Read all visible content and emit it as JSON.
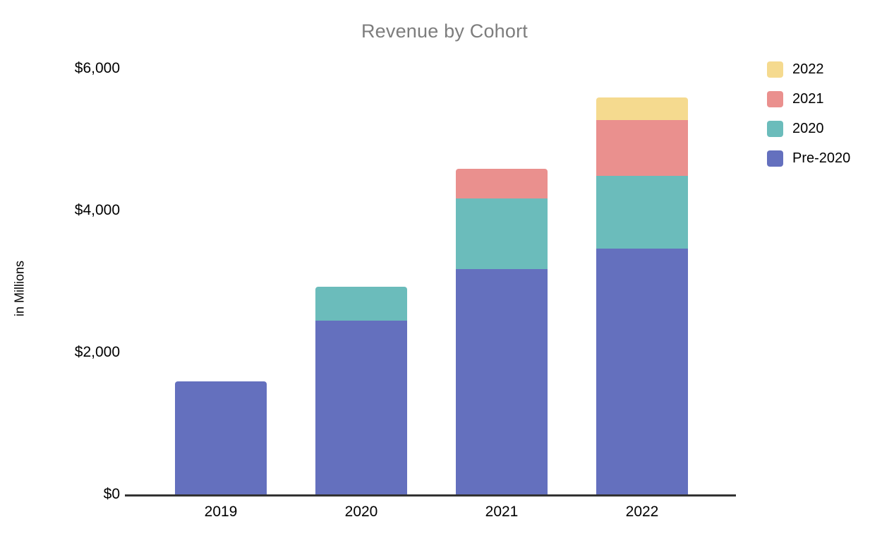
{
  "chart": {
    "background": "#ffffff",
    "title_color": "#7d7d7d",
    "axis_line_color": "#333333",
    "text_color": "#000000"
  },
  "chart_data": {
    "type": "bar",
    "stacked": true,
    "title": "Revenue by Cohort",
    "xlabel": "",
    "ylabel": "in Millions",
    "categories": [
      "2019",
      "2020",
      "2021",
      "2022"
    ],
    "series": [
      {
        "name": "Pre-2020",
        "color": "#6470BE",
        "values": [
          1590,
          2450,
          3170,
          3460
        ]
      },
      {
        "name": "2020",
        "color": "#6BBCBB",
        "values": [
          0,
          480,
          1000,
          1030
        ]
      },
      {
        "name": "2021",
        "color": "#EA908E",
        "values": [
          0,
          0,
          420,
          780
        ]
      },
      {
        "name": "2022",
        "color": "#F5DA8F",
        "values": [
          0,
          0,
          0,
          320
        ]
      }
    ],
    "totals": [
      1590,
      2930,
      4590,
      5590
    ],
    "ylim": [
      0,
      6000
    ],
    "y_ticks": [
      {
        "value": 0,
        "label": "$0"
      },
      {
        "value": 2000,
        "label": "$2,000"
      },
      {
        "value": 4000,
        "label": "$4,000"
      },
      {
        "value": 6000,
        "label": "$6,000"
      }
    ],
    "grid": false,
    "legend": {
      "position": "top-right",
      "entries": [
        "2022",
        "2021",
        "2020",
        "Pre-2020"
      ]
    }
  }
}
